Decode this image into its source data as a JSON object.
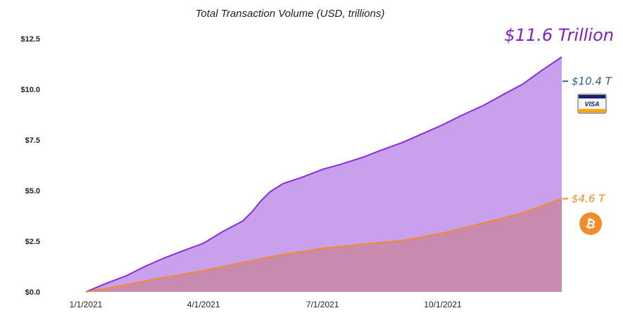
{
  "chart_data": {
    "type": "area",
    "title": "Total Transaction Volume (USD, trillions)",
    "xlabel": "",
    "ylabel": "",
    "ylim": [
      0,
      12.5
    ],
    "yticks": [
      "$0.0",
      "$2.5",
      "$5.0",
      "$7.5",
      "$10.0",
      "$12.5"
    ],
    "ytick_values": [
      0,
      2.5,
      5.0,
      7.5,
      10.0,
      12.5
    ],
    "xlim": [
      "2021-01-01",
      "2021-12-31"
    ],
    "xticks": [
      "1/1/2021",
      "4/1/2021",
      "7/1/2021",
      "10/1/2021"
    ],
    "xtick_dates": [
      "2021-01-01",
      "2021-04-01",
      "2021-07-01",
      "2021-10-01"
    ],
    "grid": false,
    "series": [
      {
        "color": "#8a2be2",
        "fill": "#c8a0ec",
        "x": [
          "2021-01-01",
          "2021-01-15",
          "2021-02-01",
          "2021-02-15",
          "2021-03-01",
          "2021-03-15",
          "2021-04-01",
          "2021-04-15",
          "2021-05-01",
          "2021-05-08",
          "2021-05-15",
          "2021-05-22",
          "2021-06-01",
          "2021-06-15",
          "2021-07-01",
          "2021-07-15",
          "2021-08-01",
          "2021-08-15",
          "2021-09-01",
          "2021-09-15",
          "2021-10-01",
          "2021-10-15",
          "2021-11-01",
          "2021-11-15",
          "2021-12-01",
          "2021-12-15",
          "2021-12-31"
        ],
        "y": [
          0.0,
          0.38,
          0.8,
          1.25,
          1.65,
          2.0,
          2.4,
          2.95,
          3.5,
          3.95,
          4.5,
          4.95,
          5.35,
          5.65,
          6.05,
          6.3,
          6.65,
          7.0,
          7.4,
          7.8,
          8.25,
          8.7,
          9.2,
          9.7,
          10.25,
          10.9,
          11.6
        ]
      },
      {
        "color": "#f28c28",
        "fill": "#c98ab0",
        "x": [
          "2021-01-01",
          "2021-02-01",
          "2021-03-01",
          "2021-04-01",
          "2021-05-01",
          "2021-06-01",
          "2021-07-01",
          "2021-08-01",
          "2021-09-01",
          "2021-10-01",
          "2021-11-01",
          "2021-12-01",
          "2021-12-31"
        ],
        "y": [
          0.0,
          0.35,
          0.7,
          1.05,
          1.45,
          1.85,
          2.15,
          2.35,
          2.55,
          2.9,
          3.4,
          3.9,
          4.6
        ]
      }
    ],
    "annotations": {
      "total": {
        "text": "$11.6 Trillion",
        "color": "#7b1fd0"
      },
      "visa": {
        "text": "$10.4 T",
        "value": 10.4,
        "color": "#2e5f8a",
        "icon": "visa-card-icon",
        "icon_text": "VISA"
      },
      "bitcoin": {
        "text": "$4.6 T",
        "value": 4.6,
        "color": "#f28c28",
        "icon": "bitcoin-icon",
        "icon_text": "₿"
      }
    }
  }
}
